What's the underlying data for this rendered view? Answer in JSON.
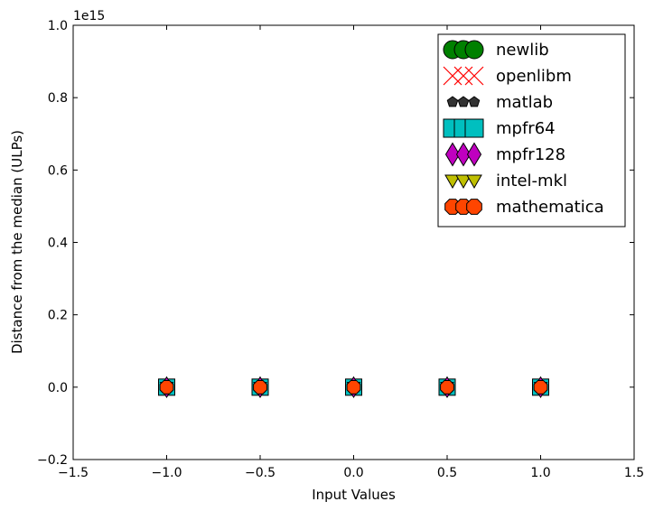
{
  "chart_data": {
    "type": "scatter",
    "title": "",
    "xlabel": "Input Values",
    "ylabel": "Distance from the median (ULPs)",
    "y_offset_text": "1e15",
    "xlim": [
      -1.5,
      1.5
    ],
    "ylim": [
      -0.2,
      1.0
    ],
    "y_scale": 1000000000000000.0,
    "x_ticks": [
      "−1.5",
      "−1.0",
      "−0.5",
      "0.0",
      "0.5",
      "1.0",
      "1.5"
    ],
    "y_ticks": [
      "−0.2",
      "0.0",
      "0.2",
      "0.4",
      "0.6",
      "0.8",
      "1.0"
    ],
    "x_tick_values": [
      -1.5,
      -1.0,
      -0.5,
      0.0,
      0.5,
      1.0,
      1.5
    ],
    "y_tick_values": [
      -0.2,
      0.0,
      0.2,
      0.4,
      0.6,
      0.8,
      1.0
    ],
    "grid": false,
    "legend_position": "top-right",
    "x": [
      -1.0,
      -0.5,
      0.0,
      0.5,
      1.0
    ],
    "series": [
      {
        "name": "newlib",
        "marker": "circle",
        "color": "#008000",
        "values": [
          0,
          0,
          0,
          0,
          0
        ]
      },
      {
        "name": "openlibm",
        "marker": "x",
        "color": "#ff0000",
        "values": [
          0,
          0,
          0,
          0,
          0
        ]
      },
      {
        "name": "matlab",
        "marker": "pentagon",
        "color": "#333333",
        "values": [
          0,
          0,
          0,
          0,
          0
        ]
      },
      {
        "name": "mpfr64",
        "marker": "square",
        "color": "#00bfbf",
        "values": [
          0,
          0,
          0,
          0,
          0
        ]
      },
      {
        "name": "mpfr128",
        "marker": "diamond",
        "color": "#bf00bf",
        "values": [
          0,
          0,
          0,
          0,
          0
        ]
      },
      {
        "name": "intel-mkl",
        "marker": "triangle-down",
        "color": "#bfbf00",
        "values": [
          0,
          0,
          0,
          0,
          0
        ]
      },
      {
        "name": "mathematica",
        "marker": "octagon",
        "color": "#ff4500",
        "values": [
          0,
          0,
          0,
          0,
          0
        ]
      }
    ]
  }
}
